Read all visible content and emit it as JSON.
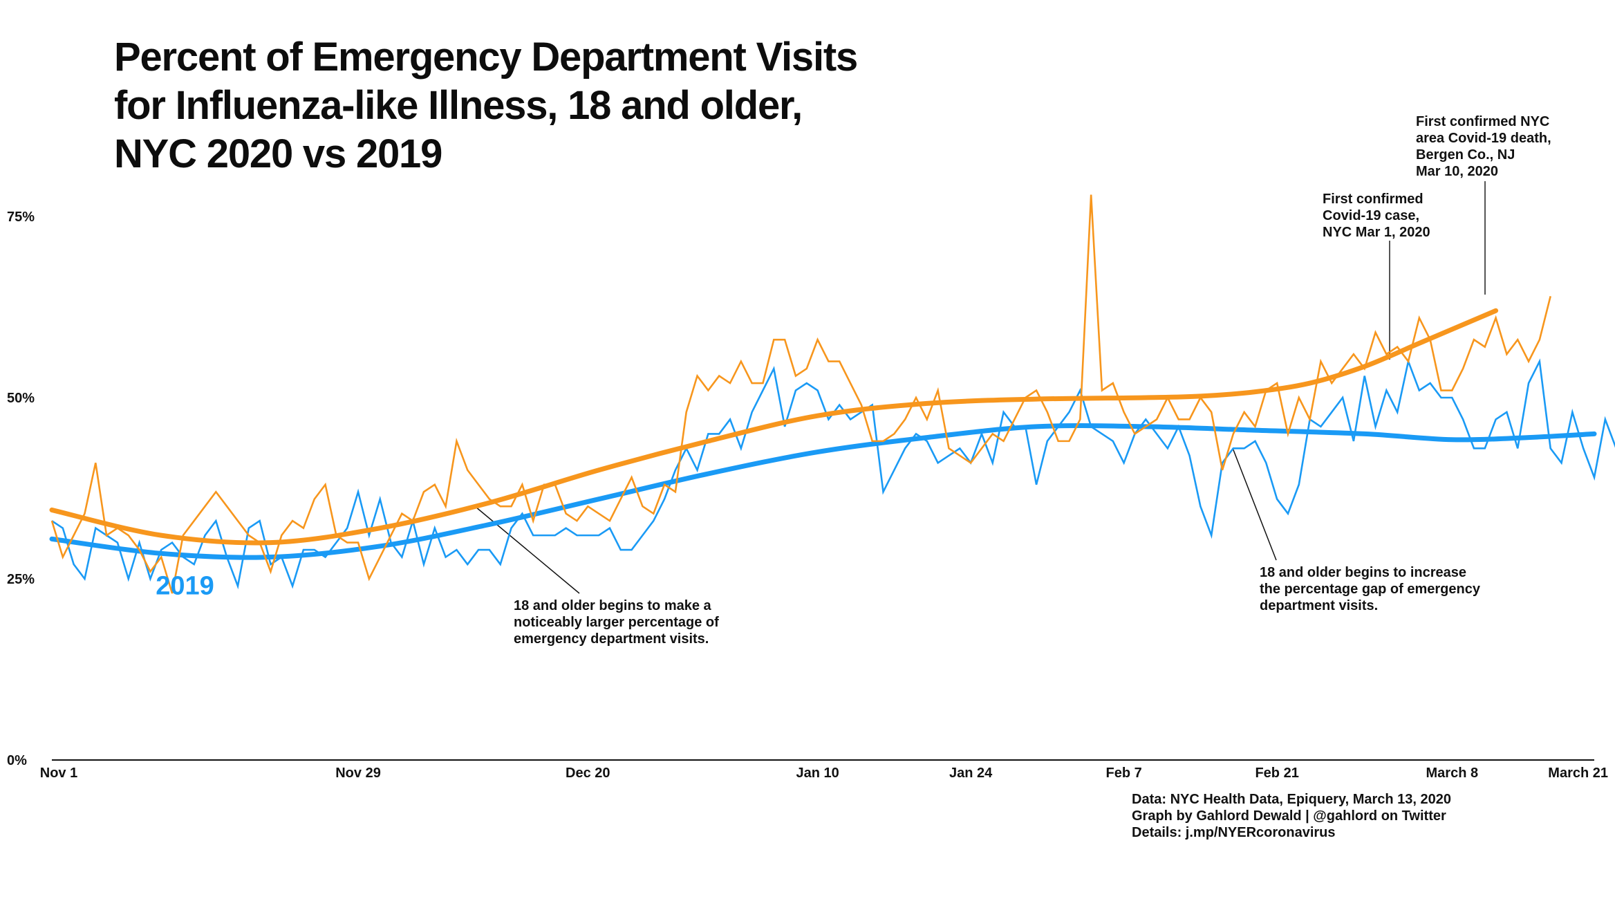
{
  "title_lines": [
    "Percent of Emergency Department Visits",
    "for Influenza-like Illness, 18 and older,",
    "NYC 2020 vs 2019"
  ],
  "colors": {
    "s2020": "#f7961d",
    "s2019": "#1a9af5",
    "axis": "#111111",
    "leader": "#333333"
  },
  "chart_data": {
    "type": "line",
    "title": "Percent of Emergency Department Visits for Influenza-like Illness, 18 and older, NYC 2020 vs 2019",
    "xlabel": "",
    "ylabel": "",
    "x_unit": "days since Nov 1",
    "xlim": [
      0,
      141
    ],
    "ylim": [
      0,
      75
    ],
    "grid": false,
    "yticks": [
      {
        "value": 0,
        "label": "0%"
      },
      {
        "value": 25,
        "label": "25%"
      },
      {
        "value": 50,
        "label": "50%"
      },
      {
        "value": 75,
        "label": "75%"
      }
    ],
    "xticks": [
      {
        "value": 0,
        "label": "Nov 1"
      },
      {
        "value": 28,
        "label": "Nov 29"
      },
      {
        "value": 49,
        "label": "Dec 20"
      },
      {
        "value": 70,
        "label": "Jan 10"
      },
      {
        "value": 84,
        "label": "Jan 24"
      },
      {
        "value": 98,
        "label": "Feb 7"
      },
      {
        "value": 112,
        "label": "Feb 21"
      },
      {
        "value": 128,
        "label": "March 8"
      },
      {
        "value": 141,
        "label": "March 21"
      }
    ],
    "series": [
      {
        "name": "2020",
        "raw": [
          33,
          28,
          31,
          34,
          41,
          31,
          32,
          31,
          29,
          26,
          28,
          23,
          31,
          33,
          35,
          37,
          35,
          33,
          31,
          30,
          26,
          31,
          33,
          32,
          36,
          38,
          31,
          30,
          30,
          25,
          28,
          31,
          34,
          33,
          37,
          38,
          35,
          44,
          40,
          38,
          36,
          35,
          35,
          38,
          33,
          38,
          38,
          34,
          33,
          35,
          34,
          33,
          36,
          39,
          35,
          34,
          38,
          37,
          48,
          53,
          51,
          53,
          52,
          55,
          52,
          52,
          58,
          58,
          53,
          54,
          58,
          55,
          55,
          52,
          49,
          44,
          44,
          45,
          47,
          50,
          47,
          51,
          43,
          42,
          41,
          43,
          45,
          44,
          47,
          50,
          51,
          48,
          44,
          44,
          47,
          78,
          51,
          52,
          48,
          45,
          46,
          47,
          50,
          47,
          47,
          50,
          48,
          40,
          45,
          48,
          46,
          51,
          52,
          45,
          50,
          47,
          55,
          52,
          54,
          56,
          54,
          59,
          56,
          57,
          55,
          61,
          58,
          51,
          51,
          54,
          58,
          57,
          61,
          56,
          58,
          55,
          58,
          64
        ],
        "trend_points": [
          [
            0,
            34.5
          ],
          [
            10,
            31
          ],
          [
            20,
            30
          ],
          [
            30,
            32
          ],
          [
            40,
            35.5
          ],
          [
            50,
            40
          ],
          [
            60,
            44
          ],
          [
            70,
            47.5
          ],
          [
            80,
            49.2
          ],
          [
            90,
            49.8
          ],
          [
            100,
            50
          ],
          [
            105,
            50.2
          ],
          [
            110,
            50.8
          ],
          [
            115,
            52
          ],
          [
            120,
            54.3
          ],
          [
            125,
            57.5
          ],
          [
            132,
            62
          ]
        ]
      },
      {
        "name": "2019",
        "raw": [
          33,
          32,
          27,
          25,
          32,
          31,
          30,
          25,
          30,
          25,
          29,
          30,
          28,
          27,
          31,
          33,
          28,
          24,
          32,
          33,
          27,
          28,
          24,
          29,
          29,
          28,
          30,
          32,
          37,
          31,
          36,
          30,
          28,
          33,
          27,
          32,
          28,
          29,
          27,
          29,
          29,
          27,
          32,
          34,
          31,
          31,
          31,
          32,
          31,
          31,
          31,
          32,
          29,
          29,
          31,
          33,
          36,
          40,
          43,
          40,
          45,
          45,
          47,
          43,
          48,
          51,
          54,
          46,
          51,
          52,
          51,
          47,
          49,
          47,
          48,
          49,
          37,
          40,
          43,
          45,
          44,
          41,
          42,
          43,
          41,
          45,
          41,
          48,
          46,
          46,
          38,
          44,
          46,
          48,
          51,
          46,
          45,
          44,
          41,
          45,
          47,
          45,
          43,
          46,
          42,
          35,
          31,
          41,
          43,
          43,
          44,
          41,
          36,
          34,
          38,
          47,
          46,
          48,
          50,
          44,
          53,
          46,
          51,
          48,
          55,
          51,
          52,
          50,
          50,
          47,
          43,
          43,
          47,
          48,
          43,
          52,
          55,
          43,
          41,
          48,
          43,
          39,
          47,
          43,
          39,
          40
        ],
        "trend_points": [
          [
            0,
            30.5
          ],
          [
            10,
            28.5
          ],
          [
            20,
            28
          ],
          [
            30,
            29.5
          ],
          [
            40,
            32.5
          ],
          [
            50,
            36
          ],
          [
            60,
            39.5
          ],
          [
            70,
            42.5
          ],
          [
            80,
            44.5
          ],
          [
            90,
            46
          ],
          [
            100,
            46
          ],
          [
            110,
            45.5
          ],
          [
            120,
            45
          ],
          [
            128,
            44.2
          ],
          [
            135,
            44.5
          ],
          [
            141,
            45
          ]
        ]
      }
    ],
    "series_label": {
      "text": "2019",
      "x": 10,
      "y": 24
    },
    "annotations": [
      {
        "lines": [
          "First confirmed",
          "Covid-19 case,",
          "NYC Mar 1, 2020"
        ]
      },
      {
        "lines": [
          "First confirmed NYC",
          "area Covid-19 death,",
          "Bergen Co., NJ",
          "Mar 10, 2020"
        ]
      },
      {
        "lines": [
          "18 and older begins to make a",
          "noticeably larger percentage of",
          "emergency department visits."
        ]
      },
      {
        "lines": [
          "18 and older begins to increase",
          "the percentage gap of emergency",
          "department visits."
        ]
      }
    ]
  },
  "credits": [
    "Data: NYC Health Data, Epiquery,  March 13, 2020",
    "Graph by Gahlord Dewald  | @gahlord on Twitter",
    "Details: j.mp/NYERcoronavirus"
  ]
}
